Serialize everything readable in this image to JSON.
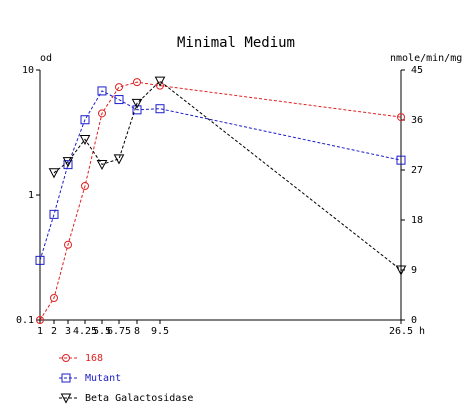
{
  "chart_data": {
    "type": "line",
    "title": "Minimal Medium",
    "y_left_label": "od",
    "y_right_label": "nmole/min/mg",
    "x_unit": "h",
    "x_ticks": [
      {
        "value": 1,
        "label": "1"
      },
      {
        "value": 2,
        "label": "2"
      },
      {
        "value": 3,
        "label": "3"
      },
      {
        "value": 4.25,
        "label": "4.25"
      },
      {
        "value": 5.5,
        "label": "5.5"
      },
      {
        "value": 6.75,
        "label": "6.75"
      },
      {
        "value": 8,
        "label": "8"
      },
      {
        "value": 9.5,
        "label": "9.5"
      },
      {
        "value": 26.5,
        "label": "26.5"
      }
    ],
    "y_left_ticks": [
      {
        "value": 0.1,
        "label": "0.1"
      },
      {
        "value": 1,
        "label": "1"
      },
      {
        "value": 10,
        "label": "10"
      }
    ],
    "y_right_ticks": [
      {
        "value": 0,
        "label": "0"
      },
      {
        "value": 9,
        "label": "9"
      },
      {
        "value": 18,
        "label": "18"
      },
      {
        "value": 27,
        "label": "27"
      },
      {
        "value": 36,
        "label": "36"
      },
      {
        "value": 45,
        "label": "45"
      }
    ],
    "y_left_scale": "log",
    "y_left_range": [
      0.1,
      10
    ],
    "y_right_range": [
      0,
      45
    ],
    "series": [
      {
        "name": "168",
        "axis": "left",
        "color": "#e02020",
        "marker": "circle",
        "points": [
          {
            "x": 1,
            "y": 0.1
          },
          {
            "x": 2,
            "y": 0.15
          },
          {
            "x": 3,
            "y": 0.4
          },
          {
            "x": 4.25,
            "y": 1.18
          },
          {
            "x": 5.5,
            "y": 4.5
          },
          {
            "x": 6.75,
            "y": 7.3
          },
          {
            "x": 8,
            "y": 8.0
          },
          {
            "x": 9.5,
            "y": 7.5
          },
          {
            "x": 26.5,
            "y": 4.2
          }
        ]
      },
      {
        "name": "Mutant",
        "axis": "left",
        "color": "#1c1ccc",
        "marker": "square",
        "points": [
          {
            "x": 1,
            "y": 0.3
          },
          {
            "x": 2,
            "y": 0.7
          },
          {
            "x": 3,
            "y": 1.75
          },
          {
            "x": 4.25,
            "y": 4.0
          },
          {
            "x": 5.5,
            "y": 6.8
          },
          {
            "x": 6.75,
            "y": 5.8
          },
          {
            "x": 8,
            "y": 4.8
          },
          {
            "x": 9.5,
            "y": 4.9
          },
          {
            "x": 26.5,
            "y": 1.9
          }
        ]
      },
      {
        "name": "Beta Galactosidase",
        "axis": "right",
        "color": "#000000",
        "marker": "triangle-down",
        "points": [
          {
            "x": 2,
            "y": 26.5
          },
          {
            "x": 3,
            "y": 28.5
          },
          {
            "x": 4.25,
            "y": 32.5
          },
          {
            "x": 5.5,
            "y": 28.0
          },
          {
            "x": 6.75,
            "y": 29.0
          },
          {
            "x": 8,
            "y": 39.0
          },
          {
            "x": 9.5,
            "y": 43.0
          },
          {
            "x": 26.5,
            "y": 9.0
          }
        ]
      }
    ],
    "legend_position": "bottom-left"
  }
}
